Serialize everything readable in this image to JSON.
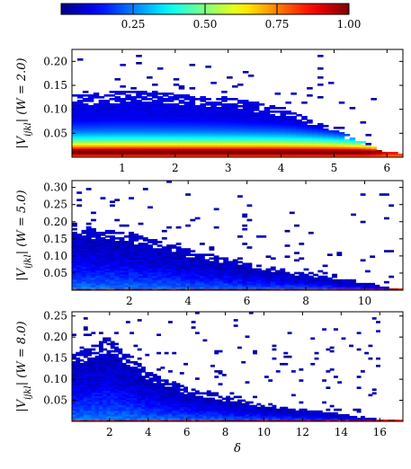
{
  "chart_data": [
    {
      "type": "heatmap",
      "panel": "top",
      "ylabel": "|V_{ijkl}| (W = 2.0)",
      "xlabel": "",
      "xlim": [
        0.05,
        6.3
      ],
      "ylim": [
        0.0,
        0.225
      ],
      "xticks": [
        1,
        2,
        3,
        4,
        5,
        6
      ],
      "yticks": [
        0.05,
        0.1,
        0.15,
        0.2
      ],
      "ytick_labels": [
        "0.05",
        "0.10",
        "0.15",
        "0.20"
      ],
      "upper_edge": [
        [
          0.1,
          0.13
        ],
        [
          1.0,
          0.14
        ],
        [
          2.0,
          0.135
        ],
        [
          3.0,
          0.125
        ],
        [
          4.0,
          0.105
        ],
        [
          5.0,
          0.06
        ],
        [
          6.0,
          0.01
        ]
      ],
      "peak_y": 0.012
    },
    {
      "type": "heatmap",
      "panel": "middle",
      "ylabel": "|V_{ijkl}| (W = 5.0)",
      "xlabel": "",
      "xlim": [
        0.05,
        11.3
      ],
      "ylim": [
        0.0,
        0.32
      ],
      "xticks": [
        2,
        4,
        6,
        8,
        10
      ],
      "yticks": [
        0.05,
        0.1,
        0.15,
        0.2,
        0.25,
        0.3
      ],
      "ytick_labels": [
        "0.05",
        "0.10",
        "0.15",
        "0.20",
        "0.25",
        "0.30"
      ],
      "upper_edge": [
        [
          0.1,
          0.19
        ],
        [
          2.0,
          0.17
        ],
        [
          4.0,
          0.12
        ],
        [
          6.0,
          0.08
        ],
        [
          8.0,
          0.05
        ],
        [
          10.0,
          0.025
        ],
        [
          11.0,
          0.005
        ]
      ],
      "peak_y": 0.003
    },
    {
      "type": "heatmap",
      "panel": "bottom",
      "ylabel": "|V_{ijkl}| (W = 8.0)",
      "xlabel": "δ",
      "xlim": [
        0.05,
        17.2
      ],
      "ylim": [
        0.0,
        0.26
      ],
      "xticks": [
        2,
        4,
        6,
        8,
        10,
        12,
        14,
        16
      ],
      "yticks": [
        0.05,
        0.1,
        0.15,
        0.2,
        0.25
      ],
      "ytick_labels": [
        "0.05",
        "0.10",
        "0.15",
        "0.20",
        "0.25"
      ],
      "upper_edge": [
        [
          0.1,
          0.16
        ],
        [
          2.0,
          0.2
        ],
        [
          4.0,
          0.12
        ],
        [
          6.0,
          0.08
        ],
        [
          8.0,
          0.06
        ],
        [
          10.0,
          0.04
        ],
        [
          12.0,
          0.03
        ],
        [
          14.0,
          0.02
        ],
        [
          16.0,
          0.005
        ]
      ],
      "peak_y": 0.002
    }
  ],
  "colorbar": {
    "ticks": [
      0.25,
      0.5,
      0.75,
      1.0
    ],
    "tick_labels": [
      "0.25",
      "0.50",
      "0.75",
      "1.00"
    ],
    "range": [
      0.0,
      1.0
    ],
    "colormap": "jet"
  }
}
